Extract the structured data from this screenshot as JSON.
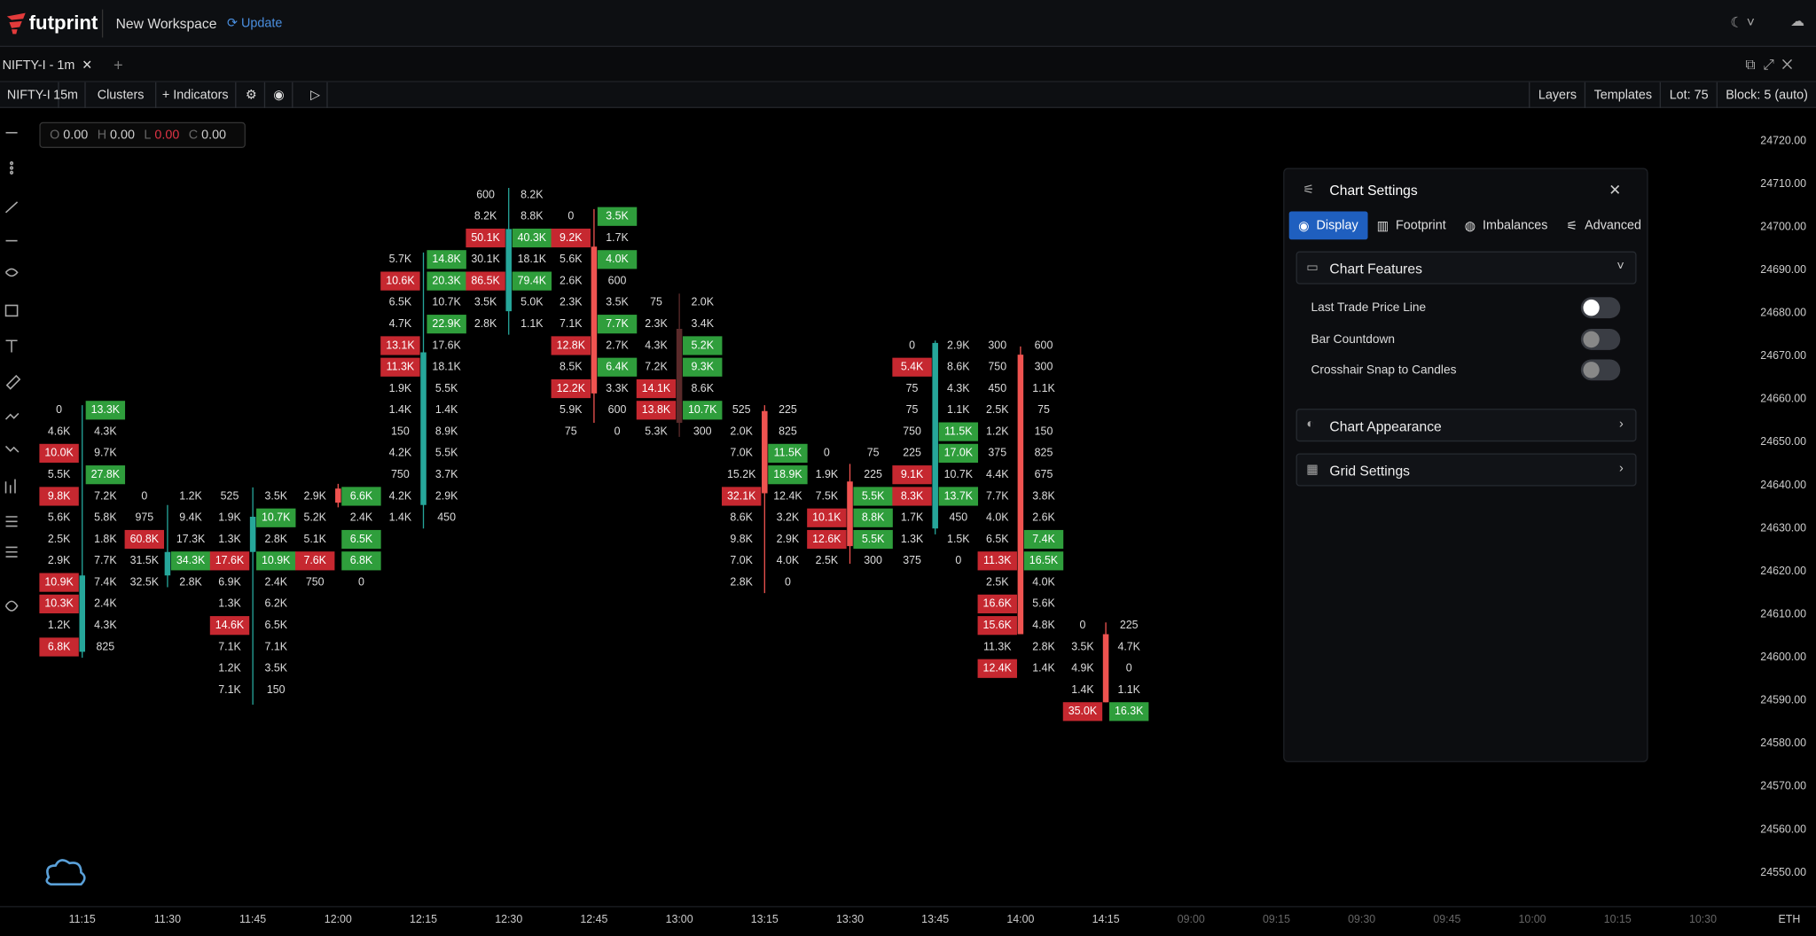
{
  "header": {
    "logo": "futprint",
    "workspace": "New Workspace",
    "update": "Update"
  },
  "tab": {
    "title": "NIFTY-I - 1m"
  },
  "toolbar": {
    "symbol": "NIFTY-I",
    "interval": "15m",
    "chart_type": "Clusters",
    "indicators": "Indicators",
    "right": [
      "Layers",
      "Templates",
      "Lot: 75",
      "Block: 5 (auto)"
    ]
  },
  "ohlc": [
    {
      "label": "O",
      "value": "0.00"
    },
    {
      "label": "H",
      "value": "0.00"
    },
    {
      "label": "L",
      "value": "0.00"
    },
    {
      "label": "C",
      "value": "0.00"
    }
  ],
  "price_axis": [
    "24720.00",
    "24710.00",
    "24700.00",
    "24690.00",
    "24680.00",
    "24670.00",
    "24660.00",
    "24650.00",
    "24640.00",
    "24630.00",
    "24620.00",
    "24610.00",
    "24600.00",
    "24590.00",
    "24580.00",
    "24570.00",
    "24560.00",
    "24550.00"
  ],
  "time_axis": [
    "11:15",
    "11:30",
    "11:45",
    "12:00",
    "12:15",
    "12:30",
    "12:45",
    "13:00",
    "13:15",
    "13:30",
    "13:45",
    "14:00",
    "14:15"
  ],
  "time_axis_projected": [
    "09:00",
    "09:15",
    "09:30",
    "09:45",
    "10:00",
    "10:15",
    "10:30"
  ],
  "session": "ETH",
  "clusters": [
    {
      "bid": [
        "0",
        "4.6K",
        {
          "text": "10.0K",
          "color": "#c62830"
        },
        "5.5K",
        {
          "text": "9.8K",
          "color": "#c62830"
        },
        "5.6K",
        "2.5K",
        "2.9K",
        {
          "text": "10.9K",
          "color": "#c62830"
        },
        {
          "text": "10.3K",
          "color": "#c62830"
        },
        "1.2K",
        {
          "text": "6.8K",
          "color": "#c62830"
        }
      ],
      "ask": [
        {
          "text": "13.3K",
          "color": "#2f9e3c"
        },
        "4.3K",
        "9.7K",
        {
          "text": "27.8K",
          "color": "#2f9e3c"
        },
        "7.2K",
        "5.8K",
        "1.8K",
        "7.7K",
        "7.4K",
        "2.4K",
        "4.3K",
        "825"
      ]
    },
    {
      "bid": [
        "0",
        "975",
        {
          "text": "60.8K",
          "color": "#c62830"
        },
        "31.5K",
        "32.5K"
      ],
      "ask": [
        "1.2K",
        "9.4K",
        "17.3K",
        {
          "text": "34.3K",
          "color": "#2f9e3c"
        },
        "2.8K"
      ]
    },
    {
      "bid": [
        "525",
        "1.9K",
        "1.3K",
        {
          "text": "17.6K",
          "color": "#c62830"
        },
        "6.9K",
        "1.3K",
        {
          "text": "14.6K",
          "color": "#c62830"
        },
        "7.1K",
        "1.2K",
        "7.1K"
      ],
      "ask": [
        "3.5K",
        {
          "text": "10.7K",
          "color": "#2f9e3c"
        },
        "2.8K",
        {
          "text": "10.9K",
          "color": "#2f9e3c"
        },
        "2.4K",
        "6.2K",
        "6.5K",
        "7.1K",
        "3.5K",
        "150"
      ]
    },
    {
      "bid": [
        "2.9K",
        "5.2K",
        "5.1K",
        {
          "text": "7.6K",
          "color": "#c62830"
        },
        "750"
      ],
      "ask": [
        {
          "text": "6.6K",
          "color": "#2f9e3c"
        },
        "2.4K",
        {
          "text": "6.5K",
          "color": "#2f9e3c"
        },
        {
          "text": "6.8K",
          "color": "#2f9e3c"
        },
        "0"
      ]
    },
    {
      "bid": [
        "5.7K",
        {
          "text": "10.6K",
          "color": "#c62830"
        },
        "6.5K",
        "4.7K",
        {
          "text": "13.1K",
          "color": "#c62830"
        },
        {
          "text": "11.3K",
          "color": "#c62830"
        },
        "1.9K",
        "1.4K",
        "150",
        "4.2K",
        "750",
        "4.2K",
        "1.4K"
      ],
      "ask": [
        {
          "text": "14.8K",
          "color": "#2f9e3c"
        },
        {
          "text": "20.3K",
          "color": "#2f9e3c"
        },
        "10.7K",
        {
          "text": "22.9K",
          "color": "#2f9e3c"
        },
        "17.6K",
        "18.1K",
        "5.5K",
        "1.4K",
        "8.9K",
        "5.5K",
        "3.7K",
        "2.9K",
        "450"
      ]
    },
    {
      "bid": [
        "600",
        "8.2K",
        {
          "text": "50.1K",
          "color": "#c62830"
        },
        "30.1K",
        {
          "text": "86.5K",
          "color": "#c62830"
        },
        "3.5K",
        "2.8K"
      ],
      "ask": [
        "8.2K",
        "8.8K",
        {
          "text": "40.3K",
          "color": "#2f9e3c"
        },
        "18.1K",
        {
          "text": "79.4K",
          "color": "#2f9e3c"
        },
        "5.0K",
        "1.1K"
      ]
    },
    {
      "bid": [
        "0",
        {
          "text": "9.2K",
          "color": "#c62830"
        },
        "5.6K",
        "2.6K",
        "2.3K",
        "7.1K",
        {
          "text": "12.8K",
          "color": "#c62830"
        },
        "8.5K",
        {
          "text": "12.2K",
          "color": "#c62830"
        },
        "5.9K",
        "75"
      ],
      "ask": [
        {
          "text": "3.5K",
          "color": "#2f9e3c"
        },
        "1.7K",
        {
          "text": "4.0K",
          "color": "#2f9e3c"
        },
        "600",
        "3.5K",
        {
          "text": "7.7K",
          "color": "#2f9e3c"
        },
        "2.7K",
        {
          "text": "6.4K",
          "color": "#2f9e3c"
        },
        "3.3K",
        "600",
        "0"
      ]
    },
    {
      "bid": [
        "75",
        "2.3K",
        "4.3K",
        "7.2K",
        {
          "text": "14.1K",
          "color": "#c62830"
        },
        {
          "text": "13.8K",
          "color": "#c62830"
        },
        "5.3K"
      ],
      "ask": [
        "2.0K",
        "3.4K",
        {
          "text": "5.2K",
          "color": "#2f9e3c"
        },
        {
          "text": "9.3K",
          "color": "#2f9e3c"
        },
        "8.6K",
        {
          "text": "10.7K",
          "color": "#2f9e3c"
        },
        "300"
      ]
    },
    {
      "bid": [
        "525",
        "2.0K",
        "7.0K",
        "15.2K",
        {
          "text": "32.1K",
          "color": "#c62830"
        },
        "8.6K",
        "9.8K",
        "7.0K",
        "2.8K"
      ],
      "ask": [
        "225",
        "825",
        {
          "text": "11.5K",
          "color": "#2f9e3c"
        },
        {
          "text": "18.9K",
          "color": "#2f9e3c"
        },
        "12.4K",
        "3.2K",
        "2.9K",
        "4.0K",
        "0"
      ]
    },
    {
      "bid": [
        "0",
        "1.9K",
        "7.5K",
        {
          "text": "10.1K",
          "color": "#c62830"
        },
        {
          "text": "12.6K",
          "color": "#c62830"
        },
        "2.5K"
      ],
      "ask": [
        "75",
        "225",
        {
          "text": "5.5K",
          "color": "#2f9e3c"
        },
        {
          "text": "8.8K",
          "color": "#2f9e3c"
        },
        {
          "text": "5.5K",
          "color": "#2f9e3c"
        },
        "300"
      ]
    },
    {
      "bid": [
        "0",
        {
          "text": "5.4K",
          "color": "#c62830"
        },
        "75",
        "75",
        "750",
        "225",
        {
          "text": "9.1K",
          "color": "#c62830"
        },
        {
          "text": "8.3K",
          "color": "#c62830"
        },
        "1.7K",
        "1.3K",
        "375"
      ],
      "ask": [
        "2.9K",
        "8.6K",
        "4.3K",
        "1.1K",
        {
          "text": "11.5K",
          "color": "#2f9e3c"
        },
        {
          "text": "17.0K",
          "color": "#2f9e3c"
        },
        "10.7K",
        {
          "text": "13.7K",
          "color": "#2f9e3c"
        },
        "450",
        "1.5K",
        "0"
      ]
    },
    {
      "bid": [
        "300",
        "750",
        "450",
        "2.5K",
        "1.2K",
        "375",
        "4.4K",
        "7.7K",
        "4.0K",
        "6.5K",
        {
          "text": "11.3K",
          "color": "#c62830"
        },
        "2.5K",
        {
          "text": "16.6K",
          "color": "#c62830"
        },
        {
          "text": "15.6K",
          "color": "#c62830"
        },
        "11.3K",
        {
          "text": "12.4K",
          "color": "#c62830"
        }
      ],
      "ask": [
        "600",
        "300",
        "1.1K",
        "75",
        "150",
        "825",
        "675",
        "3.8K",
        "2.6K",
        {
          "text": "7.4K",
          "color": "#2f9e3c"
        },
        {
          "text": "16.5K",
          "color": "#2f9e3c"
        },
        "4.0K",
        "5.6K",
        "4.8K",
        "2.8K",
        "1.4K"
      ]
    },
    {
      "bid": [
        "0",
        "3.5K",
        "4.9K",
        "1.4K",
        {
          "text": "35.0K",
          "color": "#c62830"
        }
      ],
      "ask": [
        "225",
        "4.7K",
        "0",
        "1.1K",
        {
          "text": "16.3K",
          "color": "#2f9e3c"
        }
      ]
    }
  ],
  "settings_panel": {
    "title": "Chart Settings",
    "tabs": [
      "Display",
      "Footprint",
      "Imbalances",
      "Advanced"
    ],
    "features": {
      "title": "Chart Features",
      "toggles": [
        "Last Trade Price Line",
        "Bar Countdown",
        "Crosshair Snap to Candles"
      ]
    },
    "sections": [
      "Chart Appearance",
      "Grid Settings"
    ]
  }
}
